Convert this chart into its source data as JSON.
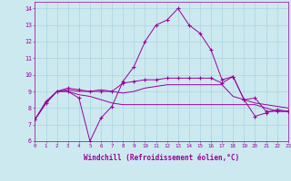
{
  "xlabel": "Windchill (Refroidissement éolien,°C)",
  "ylabel": "",
  "background_color": "#cce9f0",
  "grid_color": "#aad4df",
  "line_color": "#990099",
  "x_ticks": [
    0,
    1,
    2,
    3,
    4,
    5,
    6,
    7,
    8,
    9,
    10,
    11,
    12,
    13,
    14,
    15,
    16,
    17,
    18,
    19,
    20,
    21,
    22,
    23
  ],
  "ylim": [
    6,
    14.4
  ],
  "xlim": [
    0,
    23
  ],
  "series_marked": [
    [
      7.3,
      8.3,
      9.0,
      9.0,
      8.6,
      6.0,
      7.4,
      8.1,
      9.6,
      10.5,
      12.0,
      13.0,
      13.3,
      14.0,
      13.0,
      12.5,
      11.5,
      9.7,
      9.9,
      8.5,
      7.5,
      7.7,
      7.9,
      7.8
    ],
    [
      7.3,
      8.4,
      9.0,
      9.2,
      9.1,
      9.0,
      9.0,
      9.0,
      9.5,
      9.6,
      9.7,
      9.7,
      9.8,
      9.8,
      9.8,
      9.8,
      9.8,
      9.5,
      9.9,
      8.5,
      8.6,
      7.8,
      7.8,
      7.8
    ]
  ],
  "series_plain": [
    [
      7.3,
      8.3,
      9.0,
      9.1,
      9.0,
      9.0,
      9.1,
      9.0,
      8.9,
      9.0,
      9.2,
      9.3,
      9.4,
      9.4,
      9.4,
      9.4,
      9.4,
      9.4,
      8.7,
      8.5,
      8.3,
      8.2,
      8.1,
      8.0
    ],
    [
      7.3,
      8.3,
      9.0,
      9.0,
      8.8,
      8.7,
      8.5,
      8.3,
      8.2,
      8.2,
      8.2,
      8.2,
      8.2,
      8.2,
      8.2,
      8.2,
      8.2,
      8.2,
      8.2,
      8.2,
      8.2,
      8.0,
      7.8,
      7.8
    ]
  ]
}
